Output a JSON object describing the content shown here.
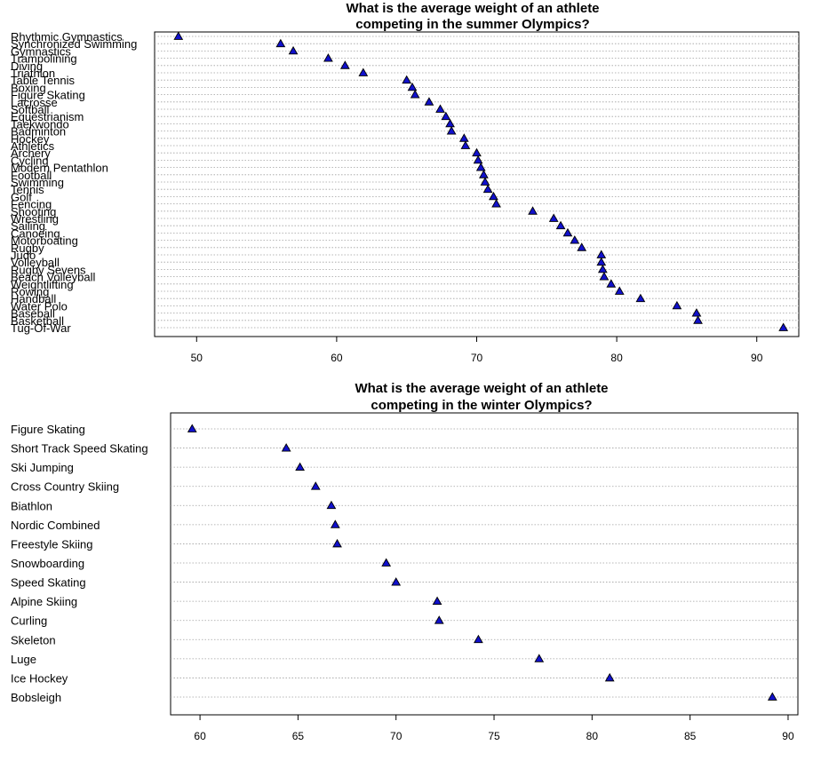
{
  "chart_data": [
    {
      "type": "dot",
      "title": [
        "What is the average weight of an athlete",
        "competing in the summer Olympics?"
      ],
      "xlabel": "",
      "ylabel": "",
      "xlim": [
        47,
        93
      ],
      "xticks": [
        50,
        60,
        70,
        80,
        90
      ],
      "grid": true,
      "marker": "triangle",
      "marker_color": "#1010cc",
      "categories": [
        "Rhythmic Gymnastics",
        "Synchronized Swimming",
        "Gymnastics",
        "Trampolining",
        "Diving",
        "Triathlon",
        "Table Tennis",
        "Boxing",
        "Figure Skating",
        "Lacrosse",
        "Softball",
        "Equestrianism",
        "Taekwondo",
        "Badminton",
        "Hockey",
        "Athletics",
        "Archery",
        "Cycling",
        "Modern Pentathlon",
        "Football",
        "Swimming",
        "Tennis",
        "Golf",
        "Fencing",
        "Shooting",
        "Wrestling",
        "Sailing",
        "Canoeing",
        "Motorboating",
        "Rugby",
        "Judo",
        "Volleyball",
        "Rugby Sevens",
        "Beach Volleyball",
        "Weightlifting",
        "Rowing",
        "Handball",
        "Water Polo",
        "Baseball",
        "Basketball",
        "Tug-Of-War"
      ],
      "values": [
        48.7,
        56.0,
        56.9,
        59.4,
        60.6,
        61.9,
        65.0,
        65.4,
        65.6,
        66.6,
        67.4,
        67.8,
        68.1,
        68.2,
        69.1,
        69.2,
        70.0,
        70.1,
        70.3,
        70.5,
        70.6,
        70.8,
        71.2,
        71.4,
        74.0,
        75.5,
        76.0,
        76.5,
        77.0,
        77.5,
        78.9,
        78.9,
        79.0,
        79.1,
        79.6,
        80.2,
        81.7,
        84.3,
        85.7,
        85.8,
        91.9
      ]
    },
    {
      "type": "dot",
      "title": [
        "What is the average weight of an athlete",
        "competing in the winter Olympics?"
      ],
      "xlabel": "",
      "ylabel": "",
      "xlim": [
        58.5,
        90.5
      ],
      "xticks": [
        60,
        65,
        70,
        75,
        80,
        85,
        90
      ],
      "grid": true,
      "marker": "triangle",
      "marker_color": "#1010cc",
      "categories": [
        "Figure Skating",
        "Short Track Speed Skating",
        "Ski Jumping",
        "Cross Country Skiing",
        "Biathlon",
        "Nordic Combined",
        "Freestyle Skiing",
        "Snowboarding",
        "Speed Skating",
        "Alpine Skiing",
        "Curling",
        "Skeleton",
        "Luge",
        "Ice Hockey",
        "Bobsleigh"
      ],
      "values": [
        59.6,
        64.4,
        65.1,
        65.9,
        66.7,
        66.9,
        67.0,
        69.5,
        70.0,
        72.1,
        72.2,
        74.2,
        77.3,
        80.9,
        89.2
      ]
    }
  ]
}
